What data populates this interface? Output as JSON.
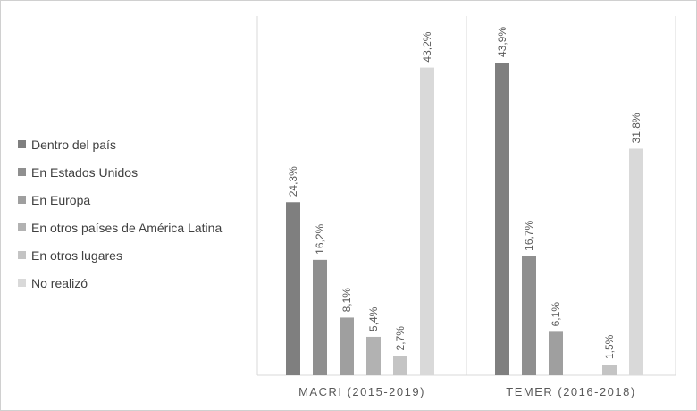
{
  "chart_data": {
    "type": "bar",
    "categories": [
      "MACRI (2015-2019)",
      "TEMER (2016-2018)"
    ],
    "series": [
      {
        "name": "Dentro del país",
        "color": "#7f7f7f",
        "values": [
          24.3,
          43.9
        ],
        "labels": [
          "24,3%",
          "43,9%"
        ]
      },
      {
        "name": "En Estados Unidos",
        "color": "#8f8f8f",
        "values": [
          16.2,
          16.7
        ],
        "labels": [
          "16,2%",
          "16,7%"
        ]
      },
      {
        "name": "En Europa",
        "color": "#9f9f9f",
        "values": [
          8.1,
          6.1
        ],
        "labels": [
          "8,1%",
          "6,1%"
        ]
      },
      {
        "name": "En otros países de América Latina",
        "color": "#b2b2b2",
        "values": [
          5.4,
          null
        ],
        "labels": [
          "5,4%",
          ""
        ]
      },
      {
        "name": "En otros lugares",
        "color": "#c4c4c4",
        "values": [
          2.7,
          1.5
        ],
        "labels": [
          "2,7%",
          "1,5%"
        ]
      },
      {
        "name": "No realizó",
        "color": "#d9d9d9",
        "values": [
          43.2,
          31.8
        ],
        "labels": [
          "43,2%",
          "31,8%"
        ]
      }
    ],
    "ylim": [
      0,
      48
    ],
    "legend": "left",
    "grid": false
  }
}
